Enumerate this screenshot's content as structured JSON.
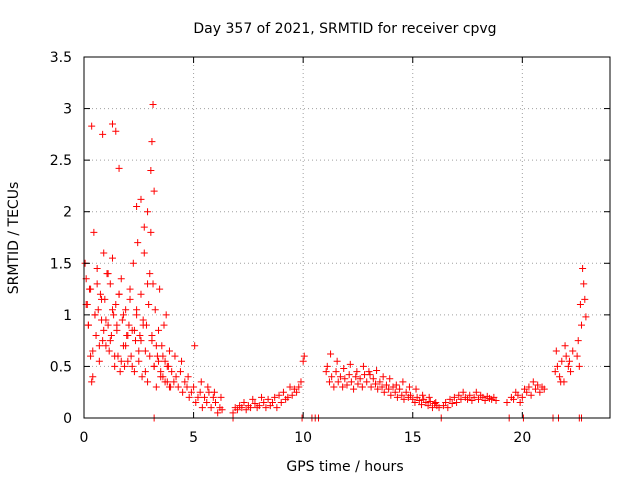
{
  "chart_data": {
    "type": "scatter",
    "title": "Day 357 of 2021, SRMTID for receiver cpvg",
    "xlabel": "GPS time / hours",
    "ylabel": "SRMTID / TECUs",
    "xlim": [
      0,
      24
    ],
    "ylim": [
      0,
      3.5
    ],
    "x_ticks": [
      0,
      5,
      10,
      15,
      20
    ],
    "x_tick_labels": [
      "0",
      "5",
      "10",
      "15",
      "20"
    ],
    "y_ticks": [
      0,
      0.5,
      1,
      1.5,
      2,
      2.5,
      3,
      3.5
    ],
    "y_tick_labels": [
      "0",
      "0.5",
      "1",
      "1.5",
      "2",
      "2.5",
      "3",
      "3.5"
    ],
    "grid": true,
    "marker": "+",
    "marker_color": "#ff0000",
    "series": [
      {
        "name": "SRMTID",
        "x": [
          0.05,
          0.1,
          0.15,
          0.2,
          0.25,
          0.3,
          0.35,
          0.4,
          0.45,
          0.5,
          0.55,
          0.6,
          0.65,
          0.7,
          0.75,
          0.8,
          0.85,
          0.9,
          0.95,
          1.0,
          1.05,
          1.1,
          1.15,
          1.2,
          1.25,
          1.3,
          1.35,
          1.4,
          1.45,
          1.5,
          1.55,
          1.6,
          1.65,
          1.7,
          1.75,
          1.8,
          1.85,
          1.9,
          1.95,
          2.0,
          2.05,
          2.1,
          2.15,
          2.2,
          2.25,
          2.3,
          2.35,
          2.4,
          2.45,
          2.5,
          2.55,
          2.6,
          2.65,
          2.7,
          2.75,
          2.8,
          2.85,
          2.9,
          2.95,
          3.0,
          3.05,
          3.1,
          3.15,
          3.2,
          3.25,
          3.3,
          3.35,
          3.4,
          3.45,
          3.5,
          3.55,
          3.6,
          3.65,
          3.7,
          3.75,
          3.8,
          3.85,
          3.9,
          3.95,
          4.0,
          0.1,
          0.2,
          0.3,
          0.4,
          0.5,
          0.6,
          0.7,
          0.8,
          0.9,
          1.0,
          1.1,
          1.2,
          1.3,
          1.4,
          1.5,
          1.6,
          1.7,
          1.8,
          1.9,
          2.0,
          2.1,
          2.2,
          2.3,
          2.4,
          2.5,
          2.6,
          2.7,
          2.8,
          2.9,
          3.0,
          3.1,
          3.2,
          3.3,
          3.4,
          3.5,
          3.6,
          3.7,
          3.8,
          3.9,
          0.35,
          0.85,
          1.3,
          1.45,
          1.6,
          2.4,
          2.6,
          2.75,
          2.9,
          3.05,
          3.1,
          3.15,
          3.2,
          4.1,
          4.2,
          4.3,
          4.4,
          4.5,
          4.6,
          4.7,
          4.8,
          4.9,
          5.0,
          5.1,
          5.2,
          5.3,
          5.4,
          5.5,
          5.6,
          5.7,
          5.8,
          5.9,
          6.0,
          6.1,
          6.2,
          6.3,
          4.15,
          4.45,
          4.75,
          5.05,
          5.35,
          5.65,
          5.95,
          6.25,
          6.8,
          6.9,
          7.0,
          7.1,
          7.2,
          7.3,
          7.4,
          7.5,
          7.6,
          7.7,
          7.8,
          7.9,
          8.0,
          8.1,
          8.2,
          8.3,
          8.4,
          8.5,
          8.6,
          8.7,
          8.8,
          8.9,
          9.0,
          9.1,
          9.2,
          9.3,
          9.4,
          9.5,
          9.6,
          9.7,
          9.8,
          9.9,
          10.0,
          10.05,
          3.2,
          6.8,
          9.95,
          10.4,
          10.55,
          10.7,
          11.05,
          11.1,
          11.2,
          11.3,
          11.4,
          11.5,
          11.6,
          11.7,
          11.8,
          11.9,
          12.0,
          12.1,
          12.2,
          12.3,
          12.4,
          12.5,
          12.6,
          12.7,
          12.8,
          12.9,
          13.0,
          13.1,
          13.2,
          13.3,
          13.4,
          13.5,
          13.6,
          13.7,
          13.8,
          13.9,
          14.0,
          14.1,
          14.2,
          14.3,
          14.4,
          14.5,
          14.6,
          14.7,
          14.8,
          14.9,
          15.0,
          15.1,
          15.2,
          15.3,
          15.4,
          15.5,
          15.6,
          15.7,
          15.8,
          15.9,
          16.0,
          16.1,
          11.25,
          11.55,
          11.85,
          12.15,
          12.45,
          12.75,
          13.05,
          13.35,
          13.65,
          13.95,
          14.25,
          14.55,
          14.85,
          15.15,
          15.45,
          15.75,
          16.05,
          16.2,
          16.4,
          16.5,
          16.6,
          16.7,
          16.8,
          16.9,
          17.0,
          17.1,
          17.2,
          17.3,
          17.4,
          17.5,
          17.6,
          17.7,
          17.8,
          17.9,
          18.0,
          18.1,
          18.2,
          18.3,
          18.4,
          18.5,
          18.6,
          18.7,
          18.8,
          16.3,
          19.3,
          19.5,
          19.6,
          19.7,
          19.8,
          19.9,
          20.0,
          20.1,
          20.2,
          20.3,
          20.4,
          20.5,
          20.6,
          20.7,
          20.8,
          20.9,
          21.0,
          19.4,
          20.05,
          21.5,
          21.6,
          21.7,
          21.8,
          21.9,
          22.0,
          22.1,
          22.2,
          22.3,
          21.55,
          21.75,
          21.95,
          22.15,
          21.4,
          21.65,
          22.5,
          22.55,
          22.6,
          22.65,
          22.7,
          22.75,
          22.8,
          22.85,
          22.9,
          22.6,
          22.7
        ],
        "y": [
          1.5,
          1.35,
          1.1,
          0.9,
          1.25,
          0.6,
          0.35,
          0.4,
          1.8,
          1.0,
          0.8,
          1.45,
          1.05,
          0.55,
          1.2,
          0.95,
          0.75,
          1.6,
          1.15,
          0.7,
          1.4,
          0.9,
          0.65,
          1.3,
          0.8,
          1.55,
          1.0,
          0.5,
          1.1,
          0.85,
          0.6,
          1.2,
          0.45,
          1.35,
          0.95,
          0.7,
          0.5,
          1.05,
          0.8,
          0.55,
          0.9,
          1.25,
          0.6,
          0.85,
          1.5,
          0.45,
          0.75,
          1.0,
          1.7,
          0.55,
          0.8,
          1.2,
          0.4,
          0.95,
          1.6,
          0.65,
          0.9,
          0.35,
          1.1,
          1.4,
          1.8,
          0.75,
          1.3,
          0.5,
          1.05,
          0.3,
          0.6,
          0.85,
          1.25,
          0.45,
          0.7,
          0.4,
          0.9,
          0.55,
          1.0,
          0.35,
          0.5,
          0.65,
          0.3,
          0.45,
          1.1,
          0.9,
          1.25,
          0.65,
          1.0,
          1.3,
          0.7,
          1.15,
          0.85,
          0.95,
          1.4,
          0.75,
          1.05,
          0.6,
          0.9,
          1.2,
          0.55,
          1.0,
          0.7,
          0.8,
          1.15,
          0.5,
          0.85,
          1.05,
          0.65,
          0.75,
          0.9,
          0.45,
          1.3,
          0.6,
          0.8,
          0.5,
          0.7,
          0.55,
          0.4,
          0.6,
          0.35,
          0.5,
          0.3,
          2.83,
          2.75,
          2.85,
          2.78,
          2.42,
          2.05,
          2.12,
          1.85,
          2.0,
          2.4,
          2.68,
          3.04,
          2.2,
          0.35,
          0.4,
          0.3,
          0.45,
          0.25,
          0.35,
          0.3,
          0.2,
          0.25,
          0.3,
          0.15,
          0.2,
          0.25,
          0.1,
          0.2,
          0.15,
          0.25,
          0.1,
          0.2,
          0.15,
          0.05,
          0.1,
          0.08,
          0.6,
          0.55,
          0.4,
          0.7,
          0.35,
          0.3,
          0.25,
          0.2,
          0.05,
          0.1,
          0.08,
          0.12,
          0.1,
          0.15,
          0.08,
          0.12,
          0.1,
          0.18,
          0.14,
          0.1,
          0.12,
          0.2,
          0.15,
          0.1,
          0.18,
          0.12,
          0.15,
          0.2,
          0.1,
          0.22,
          0.15,
          0.25,
          0.18,
          0.2,
          0.3,
          0.22,
          0.28,
          0.25,
          0.3,
          0.35,
          0.55,
          0.6,
          0.0,
          0.0,
          0.0,
          0.0,
          0.0,
          0.0,
          0.45,
          0.5,
          0.35,
          0.4,
          0.3,
          0.45,
          0.35,
          0.4,
          0.3,
          0.38,
          0.32,
          0.42,
          0.35,
          0.28,
          0.4,
          0.33,
          0.38,
          0.3,
          0.42,
          0.35,
          0.45,
          0.3,
          0.38,
          0.33,
          0.28,
          0.35,
          0.3,
          0.25,
          0.32,
          0.28,
          0.22,
          0.3,
          0.25,
          0.2,
          0.28,
          0.22,
          0.18,
          0.25,
          0.2,
          0.22,
          0.18,
          0.15,
          0.2,
          0.17,
          0.13,
          0.18,
          0.15,
          0.12,
          0.16,
          0.1,
          0.14,
          0.12,
          0.62,
          0.55,
          0.48,
          0.52,
          0.45,
          0.5,
          0.42,
          0.46,
          0.4,
          0.38,
          0.32,
          0.35,
          0.3,
          0.28,
          0.22,
          0.2,
          0.15,
          0.1,
          0.12,
          0.15,
          0.1,
          0.18,
          0.14,
          0.2,
          0.15,
          0.22,
          0.18,
          0.25,
          0.2,
          0.18,
          0.22,
          0.17,
          0.2,
          0.25,
          0.18,
          0.22,
          0.2,
          0.17,
          0.21,
          0.19,
          0.18,
          0.2,
          0.17,
          0.0,
          0.15,
          0.2,
          0.18,
          0.25,
          0.22,
          0.15,
          0.2,
          0.28,
          0.25,
          0.3,
          0.22,
          0.35,
          0.28,
          0.32,
          0.25,
          0.3,
          0.28,
          0.0,
          0.0,
          0.45,
          0.5,
          0.4,
          0.55,
          0.35,
          0.6,
          0.5,
          0.45,
          0.65,
          0.65,
          0.35,
          0.7,
          0.55,
          0.0,
          0.0,
          0.6,
          0.75,
          0.5,
          1.1,
          0.9,
          1.45,
          1.3,
          1.15,
          0.98,
          0.0,
          0.0
        ]
      }
    ]
  }
}
